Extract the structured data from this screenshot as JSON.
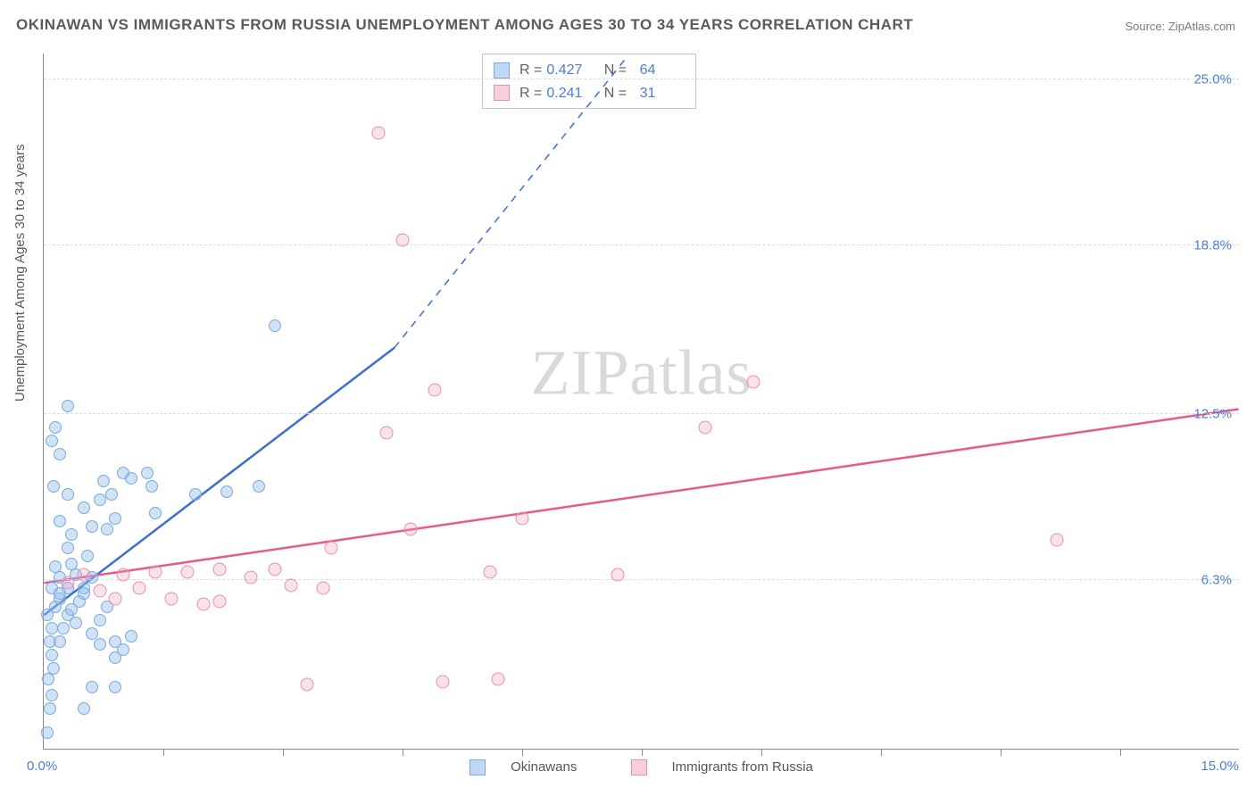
{
  "title": "OKINAWAN VS IMMIGRANTS FROM RUSSIA UNEMPLOYMENT AMONG AGES 30 TO 34 YEARS CORRELATION CHART",
  "source": "Source: ZipAtlas.com",
  "y_axis_label": "Unemployment Among Ages 30 to 34 years",
  "watermark_a": "ZIP",
  "watermark_b": "atlas",
  "chart": {
    "type": "scatter",
    "xlim": [
      0,
      15
    ],
    "ylim": [
      0,
      26
    ],
    "x_origin_label": "0.0%",
    "x_max_label": "15.0%",
    "y_ticks": [
      {
        "v": 6.3,
        "label": "6.3%"
      },
      {
        "v": 12.5,
        "label": "12.5%"
      },
      {
        "v": 18.8,
        "label": "18.8%"
      },
      {
        "v": 25.0,
        "label": "25.0%"
      }
    ],
    "x_tick_positions": [
      1.5,
      3.0,
      4.5,
      6.0,
      7.5,
      9.0,
      10.5,
      12.0,
      13.5
    ],
    "grid_color": "#dcdcdc",
    "background_color": "#ffffff",
    "series": [
      {
        "name": "Okinawans",
        "color_fill": "rgba(150,190,235,0.45)",
        "color_stroke": "#7aa8e0",
        "line_color": "#3a6fd0",
        "line_width": 2.5,
        "R": "0.427",
        "N": "64",
        "trend": {
          "x1": 0,
          "y1": 5.0,
          "x2": 4.4,
          "y2": 15.0,
          "dash_to_x": 7.3,
          "dash_to_y": 25.8
        },
        "points": [
          [
            0.05,
            0.6
          ],
          [
            0.08,
            1.5
          ],
          [
            0.1,
            2.0
          ],
          [
            0.06,
            2.6
          ],
          [
            0.12,
            3.0
          ],
          [
            0.1,
            3.5
          ],
          [
            0.08,
            4.0
          ],
          [
            0.2,
            4.0
          ],
          [
            0.1,
            4.5
          ],
          [
            0.25,
            4.5
          ],
          [
            0.05,
            5.0
          ],
          [
            0.3,
            5.0
          ],
          [
            0.15,
            5.3
          ],
          [
            0.35,
            5.2
          ],
          [
            0.2,
            5.6
          ],
          [
            0.45,
            5.5
          ],
          [
            0.1,
            6.0
          ],
          [
            0.3,
            6.0
          ],
          [
            0.5,
            6.0
          ],
          [
            0.6,
            4.3
          ],
          [
            0.7,
            3.9
          ],
          [
            0.7,
            4.8
          ],
          [
            0.8,
            5.3
          ],
          [
            0.9,
            3.4
          ],
          [
            0.9,
            4.0
          ],
          [
            1.0,
            3.7
          ],
          [
            1.1,
            4.2
          ],
          [
            0.2,
            6.4
          ],
          [
            0.4,
            6.5
          ],
          [
            0.6,
            6.4
          ],
          [
            0.15,
            6.8
          ],
          [
            0.35,
            6.9
          ],
          [
            0.3,
            7.5
          ],
          [
            0.2,
            8.5
          ],
          [
            0.35,
            8.0
          ],
          [
            0.55,
            7.2
          ],
          [
            0.3,
            9.5
          ],
          [
            0.12,
            9.8
          ],
          [
            0.2,
            11.0
          ],
          [
            0.1,
            11.5
          ],
          [
            0.15,
            12.0
          ],
          [
            0.3,
            12.8
          ],
          [
            0.5,
            9.0
          ],
          [
            0.7,
            9.3
          ],
          [
            0.75,
            10.0
          ],
          [
            0.85,
            9.5
          ],
          [
            1.0,
            10.3
          ],
          [
            1.1,
            10.1
          ],
          [
            1.3,
            10.3
          ],
          [
            1.35,
            9.8
          ],
          [
            1.4,
            8.8
          ],
          [
            0.9,
            8.6
          ],
          [
            0.8,
            8.2
          ],
          [
            0.6,
            8.3
          ],
          [
            2.9,
            15.8
          ],
          [
            2.7,
            9.8
          ],
          [
            2.3,
            9.6
          ],
          [
            1.9,
            9.5
          ],
          [
            0.6,
            2.3
          ],
          [
            0.9,
            2.3
          ],
          [
            0.5,
            1.5
          ],
          [
            0.5,
            5.8
          ],
          [
            0.2,
            5.8
          ],
          [
            0.4,
            4.7
          ]
        ]
      },
      {
        "name": "Immigrants from Russia",
        "color_fill": "rgba(240,160,185,0.30)",
        "color_stroke": "#e890ac",
        "line_color": "#e85a8a",
        "line_width": 2.5,
        "R": "0.241",
        "N": "31",
        "trend": {
          "x1": 0,
          "y1": 6.2,
          "x2": 15.0,
          "y2": 12.7
        },
        "points": [
          [
            0.3,
            6.2
          ],
          [
            0.5,
            6.5
          ],
          [
            0.7,
            5.9
          ],
          [
            0.9,
            5.6
          ],
          [
            1.0,
            6.5
          ],
          [
            1.2,
            6.0
          ],
          [
            1.4,
            6.6
          ],
          [
            1.6,
            5.6
          ],
          [
            1.8,
            6.6
          ],
          [
            2.0,
            5.4
          ],
          [
            2.2,
            6.7
          ],
          [
            2.2,
            5.5
          ],
          [
            2.6,
            6.4
          ],
          [
            2.9,
            6.7
          ],
          [
            3.1,
            6.1
          ],
          [
            3.3,
            2.4
          ],
          [
            3.5,
            6.0
          ],
          [
            3.6,
            7.5
          ],
          [
            4.2,
            23.0
          ],
          [
            4.3,
            11.8
          ],
          [
            4.5,
            19.0
          ],
          [
            4.6,
            8.2
          ],
          [
            4.9,
            13.4
          ],
          [
            5.0,
            2.5
          ],
          [
            5.6,
            6.6
          ],
          [
            5.7,
            2.6
          ],
          [
            6.0,
            8.6
          ],
          [
            7.2,
            6.5
          ],
          [
            8.3,
            12.0
          ],
          [
            8.9,
            13.7
          ],
          [
            12.7,
            7.8
          ]
        ]
      }
    ]
  },
  "legend": {
    "series1": "Okinawans",
    "series2": "Immigrants from Russia"
  },
  "stats_labels": {
    "R": "R =",
    "N": "N ="
  }
}
